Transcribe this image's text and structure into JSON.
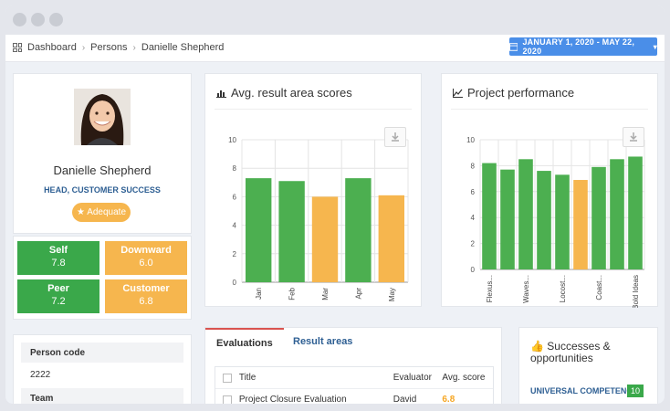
{
  "breadcrumb": [
    "Dashboard",
    "Persons",
    "Danielle Shepherd"
  ],
  "date_range": "JANUARY 1, 2020 - MAY 22, 2020",
  "profile": {
    "name": "Danielle Shepherd",
    "role": "HEAD, CUSTOMER SUCCESS",
    "badge": "Adequate"
  },
  "scores": [
    {
      "label": "Self",
      "value": "7.8",
      "color": "#3aa84a"
    },
    {
      "label": "Downward",
      "value": "6.0",
      "color": "#f6b64e"
    },
    {
      "label": "Peer",
      "value": "7.2",
      "color": "#3aa84a"
    },
    {
      "label": "Customer",
      "value": "6.8",
      "color": "#f6b64e"
    }
  ],
  "info": {
    "person_code_label": "Person code",
    "person_code": "2222",
    "team_label": "Team"
  },
  "charts": {
    "avg_title": "Avg. result area scores",
    "perf_title": "Project performance"
  },
  "chart_data": [
    {
      "type": "bar",
      "title": "Avg. result area scores",
      "categories": [
        "Jan",
        "Feb",
        "Mar",
        "Apr",
        "May"
      ],
      "values": [
        7.3,
        7.1,
        6.0,
        7.3,
        6.1
      ],
      "colors": [
        "#4caf50",
        "#4caf50",
        "#f6b64e",
        "#4caf50",
        "#f6b64e"
      ],
      "ylim": [
        0,
        10
      ],
      "yticks": [
        0,
        2,
        4,
        6,
        8,
        10
      ]
    },
    {
      "type": "bar",
      "title": "Project performance",
      "categories": [
        "Flexus...",
        "",
        "Waves...",
        "",
        "Locost...",
        "",
        "Coast...",
        "",
        "Bold Ideas"
      ],
      "values": [
        8.2,
        7.7,
        8.5,
        7.6,
        7.3,
        6.9,
        7.9,
        8.5,
        8.7
      ],
      "colors": [
        "#4caf50",
        "#4caf50",
        "#4caf50",
        "#4caf50",
        "#4caf50",
        "#f6b64e",
        "#4caf50",
        "#4caf50",
        "#4caf50"
      ],
      "ylim": [
        0,
        10
      ],
      "yticks": [
        0,
        2,
        4,
        6,
        8,
        10
      ]
    }
  ],
  "evaluations": {
    "tabs": [
      "Evaluations",
      "Result areas"
    ],
    "columns": [
      "Title",
      "Evaluator",
      "Avg. score"
    ],
    "rows": [
      {
        "title": "Project Closure Evaluation",
        "evaluator": "David",
        "score": "6.8",
        "score_color": "#f6a623"
      }
    ]
  },
  "successes": {
    "title": "Successes & opportunities",
    "item": "UNIVERSAL COMPETENCY",
    "count": "10"
  }
}
